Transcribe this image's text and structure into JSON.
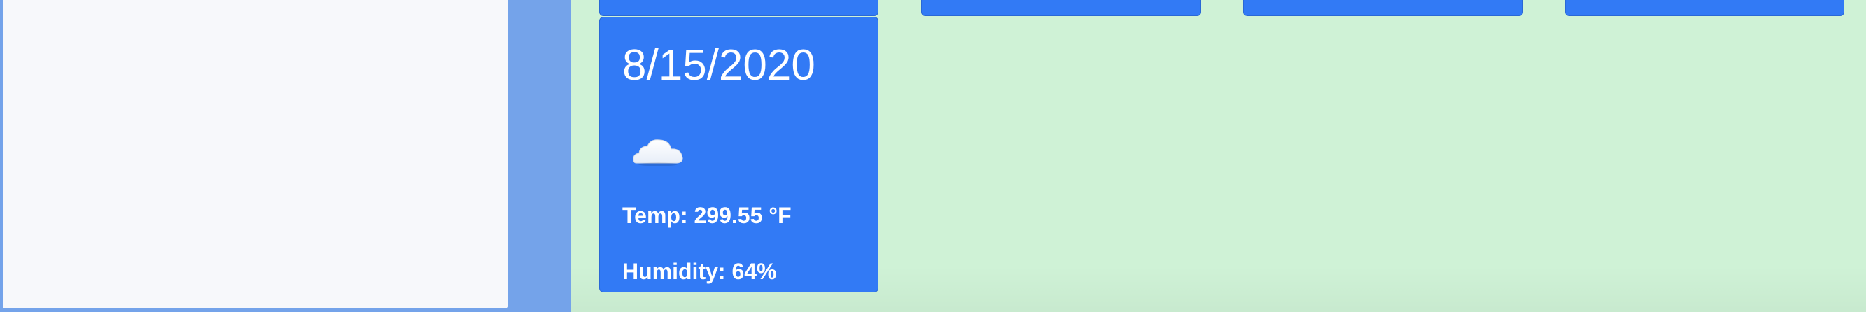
{
  "theme": {
    "accent": "#327af5",
    "page_background": "#cff2d6",
    "sidebar_background": "#74a3ea",
    "panel_background": "#f7f8fb"
  },
  "forecast": {
    "cards": [
      {
        "date": "8/15/2020",
        "icon": "cloud-icon",
        "temp_text": "Temp: 299.55 °F",
        "humidity_text": "Humidity: 64%"
      }
    ]
  }
}
